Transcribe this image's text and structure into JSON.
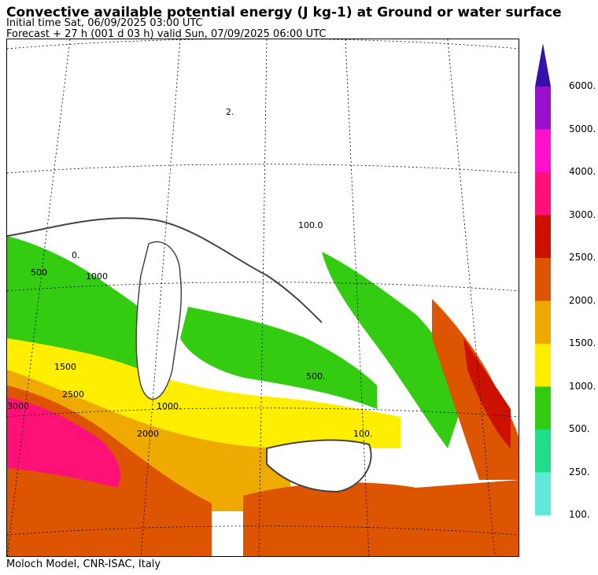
{
  "header": {
    "title": "Convective available potential energy (J kg-1) at Ground or water surface",
    "initial_time": "Initial time  Sat, 06/09/2025  03:00 UTC",
    "forecast": "Forecast  +  27 h  (001 d 03 h)  valid Sun, 07/09/2025 06:00 UTC"
  },
  "footer": {
    "credit": "Moloch Model, CNR-ISAC, Italy"
  },
  "legend": {
    "labels": [
      "100.",
      "250.",
      "500.",
      "1000.",
      "1500.",
      "2000.",
      "2500.",
      "3000.",
      "4000.",
      "5000.",
      "6000."
    ],
    "colors": [
      "#5fe9d8",
      "#22dd88",
      "#33cc11",
      "#ffee00",
      "#eeaa00",
      "#dd5500",
      "#cc1100",
      "#ff1177",
      "#ff11cc",
      "#9911cc",
      "#3311aa"
    ]
  },
  "map": {
    "contour_labels": [
      "2.",
      "0.",
      "100.0",
      "1000",
      "500",
      "2500",
      "2000",
      "1500",
      "1000.",
      "500.",
      "100.",
      "3000"
    ]
  }
}
